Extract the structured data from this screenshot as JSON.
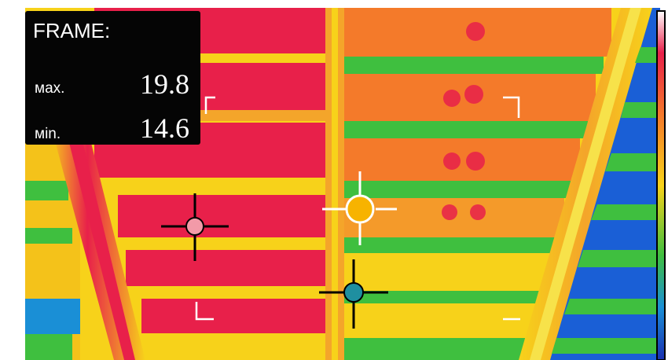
{
  "overlay": {
    "title": "FRAME:",
    "max_label": "мах.",
    "max_value": "19.8",
    "min_label": "міn.",
    "min_value": "14.6"
  },
  "cursors": [
    {
      "name": "spot-cursor-red",
      "color": "#f29aa8"
    },
    {
      "name": "spot-cursor-yellow",
      "color": "#f7b300"
    },
    {
      "name": "spot-cursor-blue",
      "color": "#1f8fa0"
    }
  ],
  "palette": {
    "hot": "#e8204a",
    "warm": "#f47a2a",
    "mid": "#f7d21a",
    "cool": "#3fbf3f",
    "cold": "#1a5fd6"
  }
}
